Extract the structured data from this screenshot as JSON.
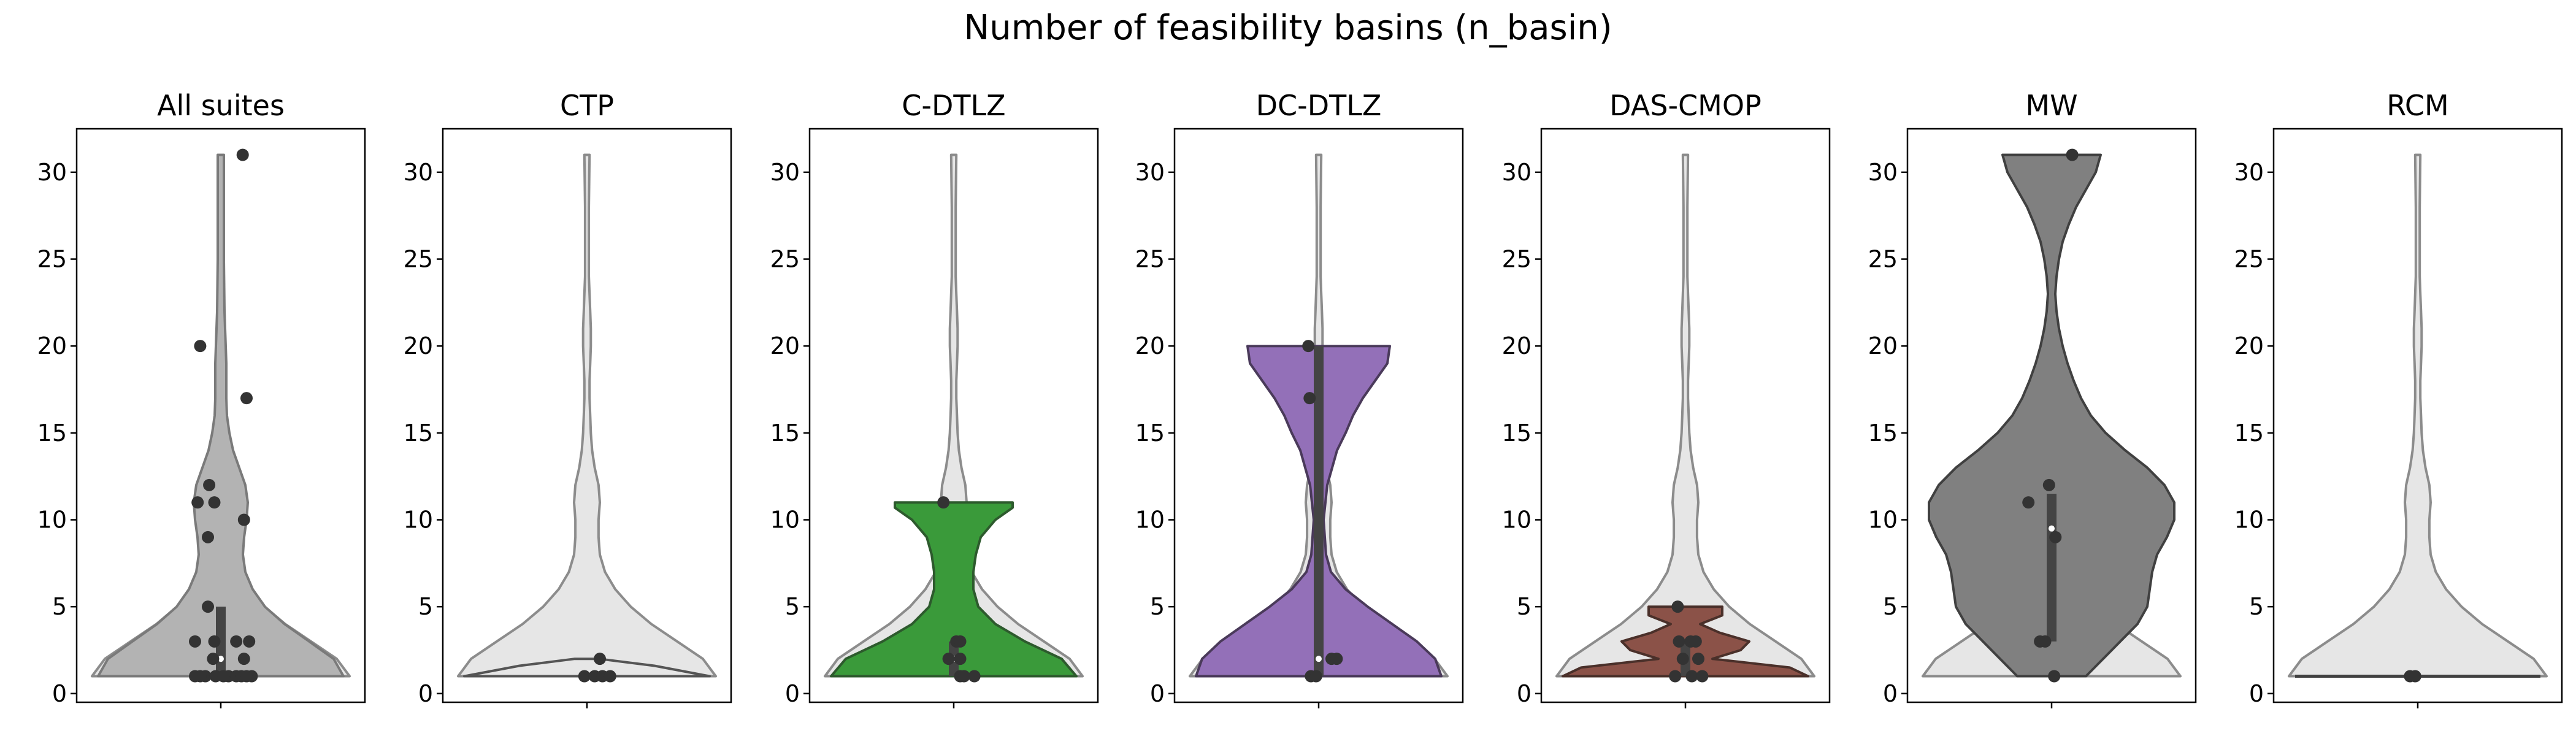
{
  "figure": {
    "title": "Number of feasibility basins (n_basin)",
    "y_ticks": [
      "0",
      "5",
      "10",
      "15",
      "20",
      "25",
      "30"
    ]
  },
  "colors": {
    "background_violin": "#e6e6e6",
    "background_edge": "#8c8c8c",
    "point": "#333333",
    "box": "#444444",
    "median": "#ffffff"
  },
  "chart_data": [
    {
      "type": "violin",
      "title": "All suites",
      "ylim": [
        -0.5,
        32.5
      ],
      "fill": "#b3b3b3",
      "edge": "#7a7a7a",
      "median": 2,
      "box": [
        1,
        5
      ],
      "profile": [
        [
          1,
          1.0
        ],
        [
          2,
          0.92
        ],
        [
          3,
          0.72
        ],
        [
          4,
          0.52
        ],
        [
          5,
          0.36
        ],
        [
          6,
          0.26
        ],
        [
          7,
          0.2
        ],
        [
          8,
          0.18
        ],
        [
          9,
          0.19
        ],
        [
          10,
          0.21
        ],
        [
          11,
          0.22
        ],
        [
          12,
          0.2
        ],
        [
          13,
          0.15
        ],
        [
          14,
          0.1
        ],
        [
          15,
          0.07
        ],
        [
          16,
          0.05
        ],
        [
          17,
          0.045
        ],
        [
          18,
          0.045
        ],
        [
          19,
          0.045
        ],
        [
          20,
          0.04
        ],
        [
          22,
          0.03
        ],
        [
          25,
          0.025
        ],
        [
          28,
          0.025
        ],
        [
          31,
          0.025
        ]
      ],
      "points": [
        [
          0.06,
          1
        ],
        [
          -0.12,
          1
        ],
        [
          0.12,
          1
        ],
        [
          -0.2,
          1
        ],
        [
          0.24,
          1
        ],
        [
          -0.04,
          1
        ],
        [
          0.16,
          1
        ],
        [
          -0.16,
          1
        ],
        [
          0.02,
          1
        ],
        [
          0.2,
          1
        ],
        [
          -0.06,
          2
        ],
        [
          0.18,
          2
        ],
        [
          -0.2,
          3
        ],
        [
          -0.05,
          3
        ],
        [
          0.12,
          3
        ],
        [
          0.22,
          3
        ],
        [
          -0.1,
          5
        ],
        [
          0.18,
          10
        ],
        [
          -0.1,
          9
        ],
        [
          -0.05,
          11
        ],
        [
          -0.18,
          11
        ],
        [
          -0.09,
          12
        ],
        [
          0.2,
          17
        ],
        [
          -0.16,
          20
        ],
        [
          0.17,
          31
        ]
      ]
    },
    {
      "type": "violin",
      "title": "CTP",
      "ylim": [
        -0.5,
        32.5
      ],
      "fill": "#e6e6e6",
      "edge": "#555555",
      "median": 1,
      "box": [
        1,
        1
      ],
      "profile": [
        [
          1,
          1.0
        ],
        [
          1.6,
          0.55
        ],
        [
          2,
          0.1
        ]
      ],
      "points": [
        [
          -0.02,
          1
        ],
        [
          0.06,
          1
        ],
        [
          0.12,
          1
        ],
        [
          0.18,
          1
        ],
        [
          0.1,
          2
        ]
      ]
    },
    {
      "type": "violin",
      "title": "C-DTLZ",
      "ylim": [
        -0.5,
        32.5
      ],
      "fill": "#3a9a3a",
      "edge": "#2d5a2d",
      "median": 2,
      "box": [
        1,
        3
      ],
      "profile": [
        [
          1,
          1.0
        ],
        [
          2,
          0.88
        ],
        [
          3,
          0.58
        ],
        [
          4,
          0.34
        ],
        [
          5,
          0.2
        ],
        [
          6,
          0.16
        ],
        [
          7,
          0.16
        ],
        [
          8,
          0.18
        ],
        [
          9,
          0.22
        ],
        [
          10,
          0.34
        ],
        [
          10.7,
          0.48
        ],
        [
          11,
          0.48
        ]
      ],
      "points": [
        [
          0.05,
          1
        ],
        [
          0.08,
          1
        ],
        [
          0.16,
          1
        ],
        [
          -0.04,
          2
        ],
        [
          0.05,
          2
        ],
        [
          0.02,
          3
        ],
        [
          0.05,
          3
        ],
        [
          -0.08,
          11
        ]
      ]
    },
    {
      "type": "violin",
      "title": "DC-DTLZ",
      "ylim": [
        -0.5,
        32.5
      ],
      "fill": "#9370b8",
      "edge": "#4a3a5a",
      "median": 2,
      "box": [
        1,
        20
      ],
      "profile": [
        [
          1,
          1.0
        ],
        [
          2,
          0.95
        ],
        [
          3,
          0.8
        ],
        [
          4,
          0.6
        ],
        [
          5,
          0.4
        ],
        [
          6,
          0.22
        ],
        [
          7,
          0.1
        ],
        [
          8,
          0.06
        ],
        [
          10,
          0.04
        ],
        [
          12,
          0.07
        ],
        [
          14,
          0.15
        ],
        [
          15,
          0.22
        ],
        [
          16,
          0.28
        ],
        [
          17,
          0.36
        ],
        [
          18,
          0.46
        ],
        [
          19,
          0.56
        ],
        [
          20,
          0.58
        ]
      ],
      "points": [
        [
          -0.06,
          1
        ],
        [
          -0.02,
          1
        ],
        [
          0.1,
          2
        ],
        [
          0.14,
          2
        ],
        [
          -0.07,
          17
        ],
        [
          -0.08,
          20
        ]
      ]
    },
    {
      "type": "violin",
      "title": "DAS-CMOP",
      "ylim": [
        -0.5,
        32.5
      ],
      "fill": "#8b5248",
      "edge": "#4a302a",
      "median": 2,
      "box": [
        1,
        3
      ],
      "profile": [
        [
          1,
          1.0
        ],
        [
          1.5,
          0.85
        ],
        [
          2,
          0.22
        ],
        [
          2.5,
          0.45
        ],
        [
          3,
          0.52
        ],
        [
          3.5,
          0.28
        ],
        [
          4,
          0.12
        ],
        [
          4.5,
          0.3
        ],
        [
          5,
          0.3
        ]
      ],
      "points": [
        [
          -0.08,
          1
        ],
        [
          0.05,
          1
        ],
        [
          0.13,
          1
        ],
        [
          -0.02,
          2
        ],
        [
          0.1,
          2
        ],
        [
          -0.05,
          3
        ],
        [
          0.04,
          3
        ],
        [
          0.08,
          3
        ],
        [
          -0.06,
          5
        ]
      ]
    },
    {
      "type": "violin",
      "title": "MW",
      "ylim": [
        -0.5,
        32.5
      ],
      "fill": "#808080",
      "edge": "#404040",
      "median": 9.5,
      "box": [
        3,
        11.5
      ],
      "profile": [
        [
          1,
          0.28
        ],
        [
          2,
          0.42
        ],
        [
          3,
          0.56
        ],
        [
          4,
          0.7
        ],
        [
          5,
          0.78
        ],
        [
          6,
          0.8
        ],
        [
          7,
          0.82
        ],
        [
          8,
          0.86
        ],
        [
          9,
          0.94
        ],
        [
          10,
          1.0
        ],
        [
          11,
          1.0
        ],
        [
          12,
          0.92
        ],
        [
          13,
          0.78
        ],
        [
          14,
          0.6
        ],
        [
          15,
          0.44
        ],
        [
          16,
          0.32
        ],
        [
          17,
          0.24
        ],
        [
          18,
          0.18
        ],
        [
          19,
          0.13
        ],
        [
          20,
          0.09
        ],
        [
          21,
          0.06
        ],
        [
          22,
          0.04
        ],
        [
          23,
          0.03
        ],
        [
          24,
          0.04
        ],
        [
          25,
          0.06
        ],
        [
          26,
          0.09
        ],
        [
          27,
          0.14
        ],
        [
          28,
          0.2
        ],
        [
          29,
          0.28
        ],
        [
          30,
          0.36
        ],
        [
          31,
          0.4
        ]
      ],
      "points": [
        [
          0.02,
          1
        ],
        [
          -0.09,
          3
        ],
        [
          -0.05,
          3
        ],
        [
          -0.18,
          11
        ],
        [
          -0.02,
          12
        ],
        [
          0.03,
          9
        ],
        [
          0.16,
          31
        ]
      ]
    },
    {
      "type": "violin",
      "title": "RCM",
      "ylim": [
        -0.5,
        32.5
      ],
      "fill": "#e6e6e6",
      "edge": "#404040",
      "median": 1,
      "box": [
        1,
        1
      ],
      "profile": [
        [
          1,
          1.0
        ],
        [
          1.04,
          0.0
        ]
      ],
      "points": [
        [
          -0.06,
          1
        ],
        [
          -0.02,
          1
        ]
      ]
    }
  ],
  "background_reference": {
    "type": "violin",
    "profile": [
      [
        1,
        1.0
      ],
      [
        2,
        0.9
      ],
      [
        3,
        0.7
      ],
      [
        4,
        0.5
      ],
      [
        5,
        0.34
      ],
      [
        6,
        0.22
      ],
      [
        7,
        0.14
      ],
      [
        8,
        0.1
      ],
      [
        9,
        0.09
      ],
      [
        10,
        0.09
      ],
      [
        11,
        0.1
      ],
      [
        12,
        0.09
      ],
      [
        13,
        0.06
      ],
      [
        14,
        0.04
      ],
      [
        15,
        0.03
      ],
      [
        16,
        0.025
      ],
      [
        17,
        0.02
      ],
      [
        18,
        0.02
      ],
      [
        19,
        0.025
      ],
      [
        20,
        0.03
      ],
      [
        21,
        0.03
      ],
      [
        22,
        0.025
      ],
      [
        23,
        0.02
      ],
      [
        24,
        0.015
      ],
      [
        25,
        0.015
      ],
      [
        28,
        0.015
      ],
      [
        31,
        0.02
      ]
    ]
  }
}
